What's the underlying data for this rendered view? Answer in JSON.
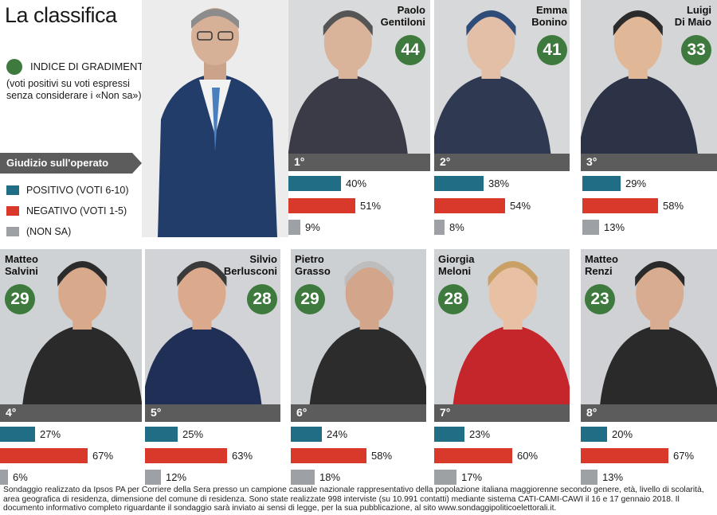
{
  "title": "La classifica",
  "legend": {
    "indice_label": "INDICE DI GRADIMENTO",
    "indice_note": "(voti positivi su voti espressi senza considerare i «Non sa»)",
    "giudizio_header": "Giudizio sull'operato",
    "keys": [
      {
        "label": "POSITIVO (VOTI 6-10)",
        "color": "#1f6e86"
      },
      {
        "label": "NEGATIVO (VOTI 1-5)",
        "color": "#d9392b"
      },
      {
        "label": "(NON SA)",
        "color": "#9da1a5"
      }
    ]
  },
  "colors": {
    "gradimento": "#3e7a3e",
    "positivo": "#1f6e86",
    "negativo": "#d9392b",
    "non_sa": "#9da1a5",
    "rank_bar": "#5c5c5c"
  },
  "chart_data": {
    "type": "bar",
    "categories": [
      "Paolo Gentiloni",
      "Emma Bonino",
      "Luigi Di Maio",
      "Matteo Salvini",
      "Silvio Berlusconi",
      "Pietro Grasso",
      "Giorgia Meloni",
      "Matteo Renzi"
    ],
    "series": [
      {
        "name": "POSITIVO (VOTI 6-10)",
        "values": [
          40,
          38,
          29,
          27,
          25,
          24,
          23,
          20
        ]
      },
      {
        "name": "NEGATIVO (VOTI 1-5)",
        "values": [
          51,
          54,
          58,
          67,
          63,
          58,
          60,
          67
        ]
      },
      {
        "name": "(NON SA)",
        "values": [
          9,
          8,
          13,
          6,
          12,
          18,
          17,
          13
        ]
      }
    ],
    "indice_di_gradimento": [
      44,
      41,
      33,
      29,
      28,
      29,
      28,
      23
    ],
    "ranks": [
      "1°",
      "2°",
      "3°",
      "4°",
      "5°",
      "6°",
      "7°",
      "8°"
    ],
    "ylim": [
      0,
      100
    ]
  },
  "people": [
    {
      "first": "Paolo",
      "last": "Gentiloni",
      "score": "44",
      "rank": "1°",
      "pos": "40%",
      "neg": "51%",
      "ns": "9%"
    },
    {
      "first": "Emma",
      "last": "Bonino",
      "score": "41",
      "rank": "2°",
      "pos": "38%",
      "neg": "54%",
      "ns": "8%"
    },
    {
      "first": "Luigi",
      "last": "Di Maio",
      "score": "33",
      "rank": "3°",
      "pos": "29%",
      "neg": "58%",
      "ns": "13%"
    },
    {
      "first": "Matteo",
      "last": "Salvini",
      "score": "29",
      "rank": "4°",
      "pos": "27%",
      "neg": "67%",
      "ns": "6%"
    },
    {
      "first": "Silvio",
      "last": "Berlusconi",
      "score": "28",
      "rank": "5°",
      "pos": "25%",
      "neg": "63%",
      "ns": "12%"
    },
    {
      "first": "Pietro",
      "last": "Grasso",
      "score": "29",
      "rank": "6°",
      "pos": "24%",
      "neg": "58%",
      "ns": "18%"
    },
    {
      "first": "Giorgia",
      "last": "Meloni",
      "score": "28",
      "rank": "7°",
      "pos": "23%",
      "neg": "60%",
      "ns": "17%"
    },
    {
      "first": "Matteo",
      "last": "Renzi",
      "score": "23",
      "rank": "8°",
      "pos": "20%",
      "neg": "67%",
      "ns": "13%"
    }
  ],
  "footer": "Sondaggio realizzato da Ipsos PA per Corriere della Sera presso un campione casuale nazionale rappresentativo della popolazione italiana maggiorenne secondo genere, età, livello di scolarità, area geografica di residenza, dimensione del comune di residenza. Sono state realizzate 998 interviste (su 10.991 contatti) mediante sistema CATI-CAMI-CAWI il 16 e 17 gennaio 2018. Il documento informativo completo riguardante il sondaggio sarà inviato ai sensi di legge, per la sua pubblicazione, al sito www.sondaggipoliticoelettorali.it."
}
